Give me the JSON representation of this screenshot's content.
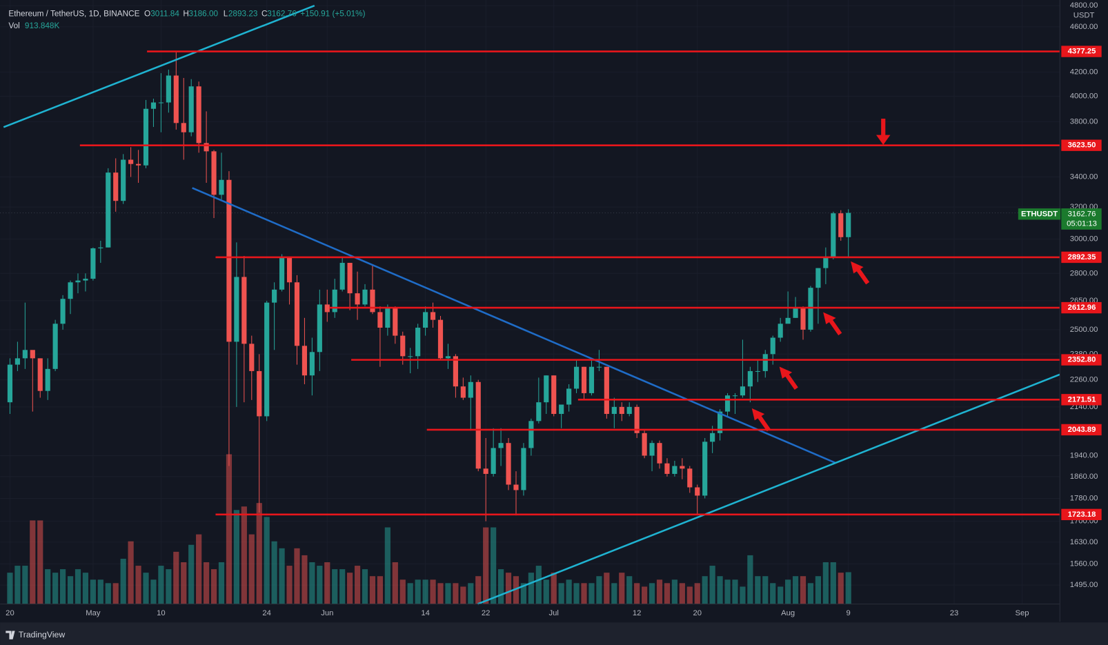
{
  "chart_data": {
    "type": "candlestick",
    "header": {
      "title": "Ethereum / TetherUS, 1D, BINANCE",
      "open_label": "O",
      "open": "3011.84",
      "high_label": "H",
      "high": "3186.00",
      "low_label": "L",
      "low": "2893.23",
      "close_label": "C",
      "close": "3162.76",
      "change": "+150.91 (+5.01%)",
      "volume_label": "Vol",
      "volume": "913.848K"
    },
    "currency": "USDT",
    "symbol": "ETHUSDT",
    "last_price": "3162.76",
    "countdown": "05:01:13",
    "brand": "TradingView",
    "log_scale": true,
    "up_color": "#26a69a",
    "down_color": "#ef5350",
    "level_color": "#e8161b",
    "ylim": [
      1439,
      4855
    ],
    "yticks": [
      {
        "value": 4800,
        "label": "4800.00"
      },
      {
        "value": 4600,
        "label": "4600.00"
      },
      {
        "value": 4200,
        "label": "4200.00"
      },
      {
        "value": 4000,
        "label": "4000.00"
      },
      {
        "value": 3800,
        "label": "3800.00"
      },
      {
        "value": 3400,
        "label": "3400.00"
      },
      {
        "value": 3200,
        "label": "3200.00"
      },
      {
        "value": 3000,
        "label": "3000.00"
      },
      {
        "value": 2800,
        "label": "2800.00"
      },
      {
        "value": 2650,
        "label": "2650.00"
      },
      {
        "value": 2500,
        "label": "2500.00"
      },
      {
        "value": 2380,
        "label": "2380.00"
      },
      {
        "value": 2260,
        "label": "2260.00"
      },
      {
        "value": 2140,
        "label": "2140.00"
      },
      {
        "value": 1940,
        "label": "1940.00"
      },
      {
        "value": 1860,
        "label": "1860.00"
      },
      {
        "value": 1780,
        "label": "1780.00"
      },
      {
        "value": 1700,
        "label": "1700.00"
      },
      {
        "value": 1630,
        "label": "1630.00"
      },
      {
        "value": 1560,
        "label": "1560.00"
      },
      {
        "value": 1495,
        "label": "1495.00"
      }
    ],
    "xlim": [
      -1.31,
      139
    ],
    "xticks": [
      {
        "value": 0,
        "label": "20"
      },
      {
        "value": 11,
        "label": "May"
      },
      {
        "value": 20,
        "label": "10"
      },
      {
        "value": 34,
        "label": "24"
      },
      {
        "value": 42,
        "label": "Jun"
      },
      {
        "value": 55,
        "label": "14"
      },
      {
        "value": 63,
        "label": "22"
      },
      {
        "value": 72,
        "label": "Jul"
      },
      {
        "value": 83,
        "label": "12"
      },
      {
        "value": 91,
        "label": "20"
      },
      {
        "value": 103,
        "label": "Aug"
      },
      {
        "value": 111,
        "label": "9"
      },
      {
        "value": 125,
        "label": "23"
      },
      {
        "value": 134,
        "label": "Sep"
      }
    ],
    "levels": [
      {
        "value": 4377.25,
        "label": "4377.25"
      },
      {
        "value": 3623.5,
        "label": "3623.50"
      },
      {
        "value": 2892.35,
        "label": "2892.35"
      },
      {
        "value": 2612.96,
        "label": "2612.96"
      },
      {
        "value": 2352.8,
        "label": "2352.80"
      },
      {
        "value": 2171.51,
        "label": "2171.51"
      },
      {
        "value": 2043.89,
        "label": "2043.89"
      },
      {
        "value": 1723.18,
        "label": "1723.18"
      }
    ],
    "ohlc": {
      "open": [
        2160,
        2330,
        2360,
        2400,
        2360,
        2210,
        2310,
        2530,
        2660,
        2750,
        2760,
        2770,
        2945,
        2950,
        3430,
        3240,
        3520,
        3490,
        3480,
        3900,
        3950,
        3950,
        4170,
        3790,
        3720,
        4080,
        3640,
        3580,
        3280,
        3380,
        2440,
        2780,
        2430,
        2300,
        2100,
        2640,
        2710,
        2890,
        2750,
        2420,
        2280,
        2390,
        2630,
        2590,
        2710,
        2860,
        2690,
        2630,
        2710,
        2590,
        2510,
        2610,
        2470,
        2370,
        2370,
        2510,
        2590,
        2550,
        2360,
        2370,
        2230,
        2180,
        2250,
        1890,
        1870,
        1970,
        1990,
        1830,
        1810,
        1970,
        2080,
        2160,
        2280,
        2110,
        2150,
        2220,
        2320,
        2200,
        2320,
        2320,
        2110,
        2140,
        2110,
        2140,
        2030,
        1940,
        1990,
        1910,
        1870,
        1900,
        1890,
        1820,
        1790,
        1995,
        2030,
        2120,
        2190,
        2190,
        2230,
        2300,
        2300,
        2380,
        2460,
        2530,
        2560,
        2610,
        2500,
        2720,
        2830,
        2890,
        3160,
        3011.84
      ],
      "high": [
        2360,
        2440,
        2640,
        2380,
        2360,
        2360,
        2550,
        2680,
        2760,
        2800,
        2800,
        2950,
        2990,
        3460,
        3530,
        3560,
        3610,
        3590,
        3970,
        3980,
        4190,
        4220,
        4380,
        4150,
        4140,
        4120,
        3880,
        3590,
        3570,
        3440,
        2980,
        2900,
        2470,
        2380,
        2650,
        2750,
        2910,
        2890,
        2790,
        2560,
        2460,
        2710,
        2710,
        2770,
        2890,
        2860,
        2810,
        2740,
        2850,
        2620,
        2630,
        2620,
        2490,
        2410,
        2530,
        2620,
        2640,
        2570,
        2430,
        2380,
        2270,
        2280,
        2260,
        2010,
        2050,
        2050,
        2010,
        1880,
        1990,
        2090,
        2270,
        2280,
        2280,
        2150,
        2240,
        2350,
        2320,
        2350,
        2400,
        2320,
        2180,
        2160,
        2160,
        2150,
        2040,
        2000,
        2000,
        1930,
        1920,
        1930,
        1900,
        1830,
        2010,
        2060,
        2130,
        2200,
        2200,
        2450,
        2320,
        2350,
        2400,
        2470,
        2560,
        2700,
        2670,
        2620,
        2730,
        2830,
        2950,
        3170,
        3180,
        3186
      ],
      "low": [
        2110,
        2300,
        2310,
        2120,
        2180,
        2170,
        2300,
        2500,
        2580,
        2690,
        2700,
        2760,
        2860,
        2950,
        3170,
        3220,
        3400,
        3360,
        3460,
        3760,
        3720,
        3870,
        3740,
        3520,
        3690,
        3570,
        3360,
        3130,
        3250,
        1900,
        2140,
        2160,
        2170,
        1730,
        2080,
        2400,
        2700,
        2630,
        2330,
        2240,
        2190,
        2300,
        2540,
        2560,
        2700,
        2600,
        2550,
        2620,
        2580,
        2320,
        2470,
        2430,
        2330,
        2290,
        2310,
        2470,
        2510,
        2350,
        2310,
        2180,
        2170,
        2040,
        1880,
        1700,
        1860,
        1900,
        1810,
        1720,
        1790,
        1940,
        2070,
        2110,
        2100,
        2050,
        2120,
        2200,
        2170,
        2190,
        2300,
        2090,
        2050,
        2080,
        2100,
        2010,
        1930,
        1880,
        1890,
        1860,
        1860,
        1850,
        1800,
        1720,
        1780,
        1950,
        2000,
        2100,
        2110,
        2180,
        2160,
        2250,
        2270,
        2330,
        2440,
        2540,
        2560,
        2450,
        2490,
        2530,
        2740,
        2880,
        2990,
        2893.23
      ],
      "close": [
        2330,
        2360,
        2400,
        2360,
        2210,
        2310,
        2530,
        2660,
        2750,
        2760,
        2770,
        2945,
        2950,
        3430,
        3240,
        3520,
        3490,
        3480,
        3900,
        3950,
        3950,
        4170,
        3790,
        3720,
        4080,
        3640,
        3580,
        3280,
        3380,
        2440,
        2780,
        2430,
        2300,
        2100,
        2640,
        2710,
        2890,
        2750,
        2420,
        2280,
        2390,
        2630,
        2590,
        2710,
        2860,
        2690,
        2630,
        2710,
        2590,
        2510,
        2610,
        2470,
        2370,
        2370,
        2510,
        2590,
        2550,
        2360,
        2370,
        2230,
        2180,
        2250,
        1890,
        1870,
        1970,
        1990,
        1830,
        1810,
        1970,
        2080,
        2160,
        2280,
        2110,
        2150,
        2220,
        2320,
        2200,
        2320,
        2320,
        2110,
        2140,
        2110,
        2140,
        2030,
        1940,
        1990,
        1910,
        1870,
        1900,
        1890,
        1820,
        1790,
        1995,
        2030,
        2120,
        2190,
        2190,
        2230,
        2300,
        2300,
        2380,
        2460,
        2530,
        2560,
        2610,
        2500,
        2720,
        2830,
        2890,
        3160,
        3011.84,
        3162.76
      ]
    },
    "vlim": [
      0,
      7200
    ],
    "volume": [
      900,
      1100,
      1100,
      2400,
      2400,
      1000,
      900,
      1000,
      800,
      1000,
      900,
      700,
      700,
      600,
      600,
      1300,
      1800,
      1100,
      900,
      700,
      1100,
      1000,
      1500,
      1200,
      1700,
      2000,
      1200,
      1000,
      1200,
      4300,
      2700,
      2800,
      2000,
      2900,
      2500,
      1800,
      1600,
      1100,
      1600,
      1400,
      1200,
      1100,
      1200,
      1000,
      1000,
      900,
      1100,
      1000,
      800,
      800,
      2200,
      1200,
      700,
      600,
      700,
      700,
      700,
      600,
      600,
      600,
      500,
      600,
      800,
      2200,
      2200,
      1000,
      900,
      800,
      600,
      900,
      1100,
      700,
      900,
      600,
      700,
      600,
      600,
      600,
      800,
      900,
      600,
      900,
      800,
      600,
      500,
      600,
      700,
      600,
      700,
      600,
      500,
      600,
      800,
      1100,
      800,
      700,
      700,
      500,
      1400,
      800,
      800,
      600,
      500,
      700,
      800,
      800,
      600,
      800,
      1200,
      1200,
      900,
      913.848
    ]
  }
}
